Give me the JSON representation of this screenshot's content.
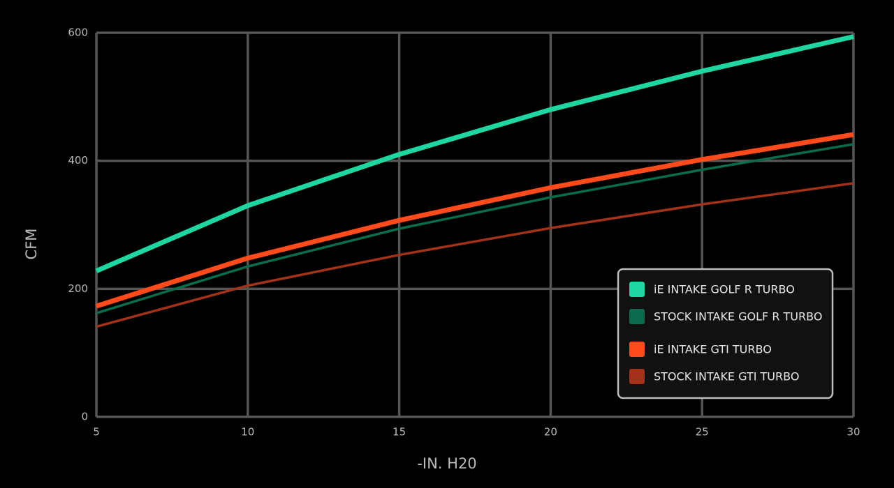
{
  "chart_data": {
    "type": "line",
    "x_label": "-IN. H20",
    "y_label": "CFM",
    "x": [
      5,
      10,
      15,
      20,
      25,
      30
    ],
    "xlim": [
      5,
      30
    ],
    "xticks": [
      5,
      10,
      15,
      20,
      25,
      30
    ],
    "ylim": [
      0,
      600
    ],
    "yticks": [
      0,
      200,
      400,
      600
    ],
    "grid": true,
    "legend": "lower right",
    "series": [
      {
        "name": "iE INTAKE GOLF R TURBO",
        "color": "#1fd6a0",
        "values": [
          228,
          330,
          410,
          480,
          540,
          594
        ]
      },
      {
        "name": "STOCK INTAKE GOLF R TURBO",
        "color": "#0a6b4f",
        "values": [
          162,
          235,
          294,
          343,
          386,
          426
        ]
      },
      {
        "name": "iE INTAKE GTI TURBO",
        "color": "#ff4a1c",
        "values": [
          173,
          248,
          307,
          358,
          402,
          441
        ]
      },
      {
        "name": "STOCK INTAKE GTI TURBO",
        "color": "#a3321b",
        "values": [
          141,
          205,
          253,
          295,
          332,
          365
        ]
      }
    ]
  }
}
